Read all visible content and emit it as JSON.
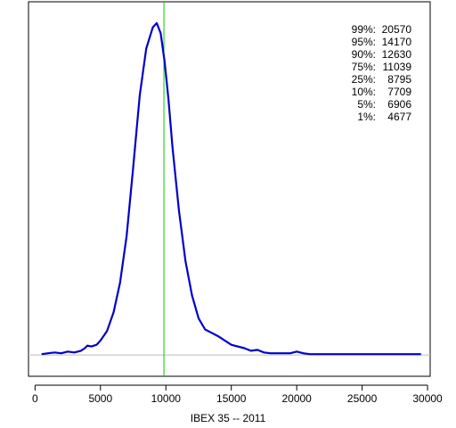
{
  "chart_data": {
    "type": "line",
    "title": "",
    "xlabel": "IBEX 35 -- 2011",
    "ylabel": "",
    "xlim": [
      -500,
      30200
    ],
    "ylim": [
      -2.5e-05,
      0.000415
    ],
    "x_ticks": [
      0,
      5000,
      10000,
      15000,
      20000,
      25000,
      30000
    ],
    "baseline": 0,
    "marker_line_x": 9850,
    "colors": {
      "density": "#0000cc",
      "marker": "#00cc00",
      "baseline": "#bebebe"
    },
    "series": [
      {
        "x": [
          500,
          1000,
          1500,
          2000,
          2500,
          3000,
          3500,
          3800,
          4000,
          4300,
          4700,
          5000,
          5500,
          6000,
          6500,
          7000,
          7500,
          8000,
          8500,
          9000,
          9300,
          9600,
          9900,
          10200,
          10500,
          11000,
          11500,
          12000,
          12500,
          13000,
          13500,
          14000,
          14500,
          15000,
          15500,
          16000,
          16500,
          17000,
          17500,
          18000,
          18500,
          19000,
          19500,
          20000,
          20500,
          21000,
          22000,
          23000,
          24000,
          25000,
          26000,
          27000,
          28000,
          29500
        ],
        "values": [
          1e-06,
          2e-06,
          3e-06,
          2e-06,
          4e-06,
          3e-06,
          5e-06,
          8e-06,
          1.1e-05,
          1e-05,
          1.2e-05,
          1.7e-05,
          2.8e-05,
          5e-05,
          8.5e-05,
          0.00014,
          0.00022,
          0.000305,
          0.00036,
          0.000385,
          0.00039,
          0.000378,
          0.000345,
          0.0003,
          0.000245,
          0.00017,
          0.00011,
          7e-05,
          4.3e-05,
          3e-05,
          2.6e-05,
          2.2e-05,
          1.7e-05,
          1.2e-05,
          1e-05,
          8e-06,
          5e-06,
          6e-06,
          3e-06,
          2e-06,
          2e-06,
          2e-06,
          2e-06,
          4e-06,
          2e-06,
          1e-06,
          1e-06,
          1e-06,
          1e-06,
          1e-06,
          1e-06,
          1e-06,
          1e-06,
          1e-06
        ]
      }
    ]
  },
  "quantiles": [
    {
      "label": "99%:",
      "value": "20570"
    },
    {
      "label": "95%:",
      "value": "14170"
    },
    {
      "label": "90%:",
      "value": "12630"
    },
    {
      "label": "75%:",
      "value": "11039"
    },
    {
      "label": "25%:",
      "value": "8795"
    },
    {
      "label": "10%:",
      "value": "7709"
    },
    {
      "label": "5%:",
      "value": "6906"
    },
    {
      "label": "1%:",
      "value": "4677"
    }
  ]
}
